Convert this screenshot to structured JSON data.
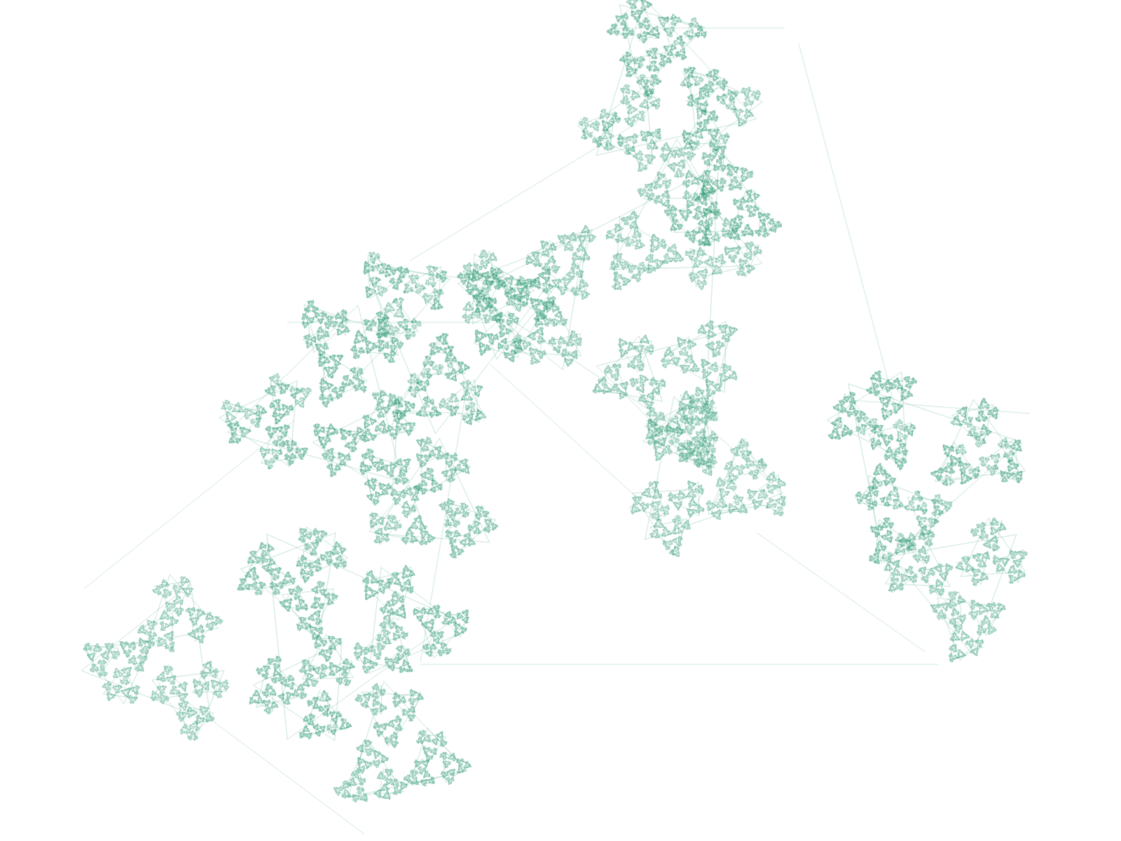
{
  "figure": {
    "kind": "triangle-fractal-path",
    "background_color": "#ffffff",
    "stroke_color": "#1f946a"
  }
}
